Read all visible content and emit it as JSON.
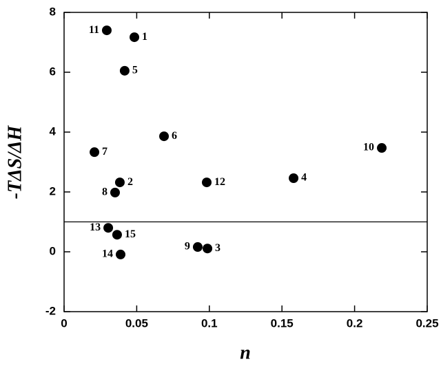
{
  "chart_data": {
    "type": "scatter",
    "xlabel": "n",
    "ylabel": "-TΔS/ΔH",
    "xlim": [
      0,
      0.25
    ],
    "xticks": [
      0,
      0.05,
      0.1,
      0.15,
      0.2,
      0.25
    ],
    "ylim": [
      -2,
      8
    ],
    "yticks": [
      -2,
      0,
      2,
      4,
      6,
      8
    ],
    "hline": 1,
    "series": [
      {
        "color": "#000000",
        "x": [
          0.0484,
          0.0384,
          0.0987,
          0.158,
          0.0417,
          0.0688,
          0.0209,
          0.0351,
          0.092,
          0.2187,
          0.0294,
          0.0982,
          0.0304,
          0.0389,
          0.0365
        ],
        "values": [
          7.17,
          2.32,
          0.11,
          2.46,
          6.05,
          3.86,
          3.33,
          1.98,
          0.16,
          3.47,
          7.4,
          2.32,
          0.8,
          -0.09,
          0.57
        ],
        "labels": [
          "1",
          "2",
          "3",
          "4",
          "5",
          "6",
          "7",
          "8",
          "9",
          "10",
          "11",
          "12",
          "13",
          "14",
          "15"
        ]
      }
    ]
  }
}
